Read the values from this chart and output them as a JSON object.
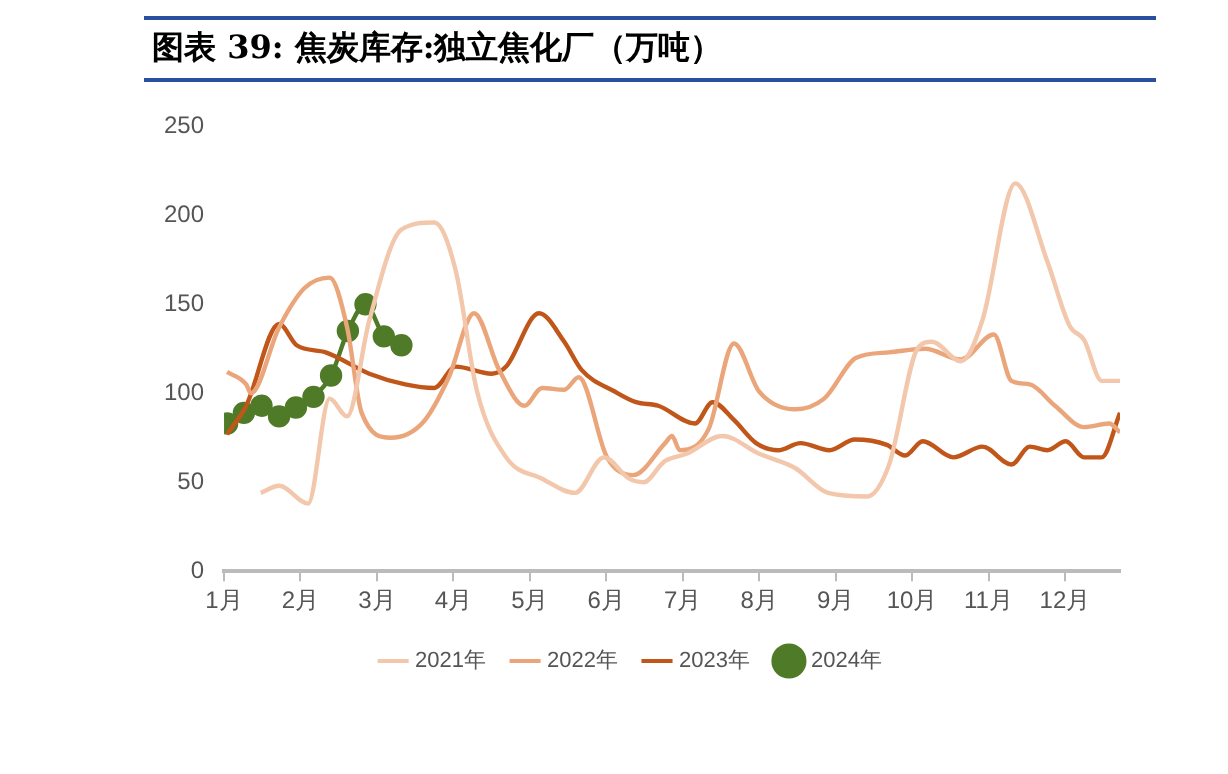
{
  "chart_data": {
    "type": "line",
    "title": "图表 39:  焦炭库存:独立焦化厂（万吨）",
    "xlim": [
      1,
      12.72
    ],
    "xticks": [
      {
        "value": 1,
        "label": "1月"
      },
      {
        "value": 2,
        "label": "2月"
      },
      {
        "value": 3,
        "label": "3月"
      },
      {
        "value": 4,
        "label": "4月"
      },
      {
        "value": 5,
        "label": "5月"
      },
      {
        "value": 6,
        "label": "6月"
      },
      {
        "value": 7,
        "label": "7月"
      },
      {
        "value": 8,
        "label": "8月"
      },
      {
        "value": 9,
        "label": "9月"
      },
      {
        "value": 10,
        "label": "10月"
      },
      {
        "value": 11,
        "label": "11月"
      },
      {
        "value": 12,
        "label": "12月"
      }
    ],
    "ylim": [
      0,
      250
    ],
    "yticks": [
      0,
      50,
      100,
      150,
      200,
      250
    ],
    "grid": false,
    "legend": "bottom",
    "series": [
      {
        "name": "2021年",
        "color": "#f2c7ab",
        "marker": "none",
        "x": [
          1.48,
          1.72,
          2.1,
          2.38,
          2.61,
          2.9,
          3.32,
          3.75,
          4.03,
          4.31,
          4.69,
          5.16,
          5.59,
          5.97,
          6.3,
          6.49,
          6.72,
          6.77,
          7.05,
          7.52,
          8.0,
          8.47,
          8.9,
          9.41,
          9.7,
          10.07,
          10.26,
          10.64,
          10.92,
          11.35,
          11.77,
          12.06,
          12.25,
          12.48,
          12.72
        ],
        "values": [
          44,
          48,
          38,
          97,
          87,
          141,
          192,
          196,
          169,
          101,
          64,
          52,
          44,
          64,
          52,
          50,
          60,
          62,
          66,
          76,
          66,
          58,
          44,
          42,
          60,
          125,
          129,
          118,
          141,
          218,
          174,
          138,
          130,
          107,
          107
        ]
      },
      {
        "name": "2022年",
        "color": "#eba57a",
        "marker": "none",
        "x": [
          1.04,
          1.29,
          1.35,
          1.72,
          2.05,
          2.38,
          2.61,
          2.8,
          3.18,
          3.61,
          3.94,
          4.27,
          4.6,
          4.93,
          5.16,
          5.45,
          5.64,
          6.01,
          6.35,
          6.77,
          6.86,
          6.96,
          7.34,
          7.67,
          8.0,
          8.47,
          8.85,
          9.27,
          9.7,
          10.17,
          10.64,
          11.07,
          11.3,
          11.54,
          11.87,
          12.25,
          12.58,
          12.72
        ],
        "values": [
          112,
          105,
          100,
          137,
          159,
          165,
          137,
          89,
          75,
          84,
          109,
          145,
          113,
          93,
          103,
          102,
          109,
          64,
          54,
          72,
          76,
          68,
          80,
          128,
          101,
          91,
          97,
          120,
          123,
          125,
          119,
          133,
          107,
          105,
          93,
          81,
          83,
          78
        ]
      },
      {
        "name": "2023年",
        "color": "#c0561a",
        "marker": "none",
        "x": [
          1.04,
          1.29,
          1.72,
          1.95,
          2.33,
          2.9,
          3.37,
          3.75,
          4.03,
          4.5,
          4.69,
          5.12,
          5.45,
          5.68,
          6.11,
          6.39,
          6.68,
          7.16,
          7.39,
          7.67,
          7.96,
          8.25,
          8.54,
          8.92,
          9.25,
          9.67,
          9.91,
          10.14,
          10.54,
          10.92,
          11.3,
          11.54,
          11.77,
          12.01,
          12.25,
          12.48,
          12.72
        ],
        "values": [
          77,
          93,
          139,
          127,
          123,
          111,
          105,
          103,
          115,
          111,
          115,
          145,
          129,
          113,
          101,
          95,
          93,
          83,
          95,
          85,
          72,
          68,
          72,
          68,
          74,
          71,
          65,
          73,
          64,
          70,
          60,
          70,
          68,
          73,
          64,
          64,
          89
        ]
      },
      {
        "name": "2024年",
        "color": "#4f7a28",
        "marker": "circle",
        "x": [
          1.04,
          1.26,
          1.49,
          1.72,
          1.94,
          2.17,
          2.4,
          2.62,
          2.85,
          3.09,
          3.32
        ],
        "values": [
          83,
          89,
          93,
          87,
          92,
          98,
          110,
          135,
          150,
          132,
          127
        ]
      }
    ]
  }
}
